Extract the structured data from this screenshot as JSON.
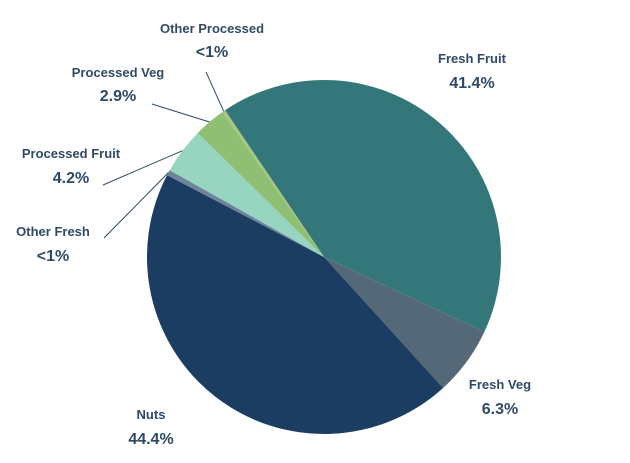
{
  "chart_data": {
    "type": "pie",
    "title": "",
    "slices": [
      {
        "name": "Fresh Fruit",
        "value": 41.4,
        "label": "41.4%",
        "color": "#34777a"
      },
      {
        "name": "Fresh Veg",
        "value": 6.3,
        "label": "6.3%",
        "color": "#546878"
      },
      {
        "name": "Nuts",
        "value": 44.4,
        "label": "44.4%",
        "color": "#1b3d61"
      },
      {
        "name": "Other Fresh",
        "value": 0.5,
        "label": "<1%",
        "color": "#6d849b"
      },
      {
        "name": "Processed Fruit",
        "value": 4.2,
        "label": "4.2%",
        "color": "#98d5c1"
      },
      {
        "name": "Processed Veg",
        "value": 2.9,
        "label": "2.9%",
        "color": "#8fbf73"
      },
      {
        "name": "Other Processed",
        "value": 0.3,
        "label": "<1%",
        "color": "#a8c77e"
      }
    ]
  }
}
